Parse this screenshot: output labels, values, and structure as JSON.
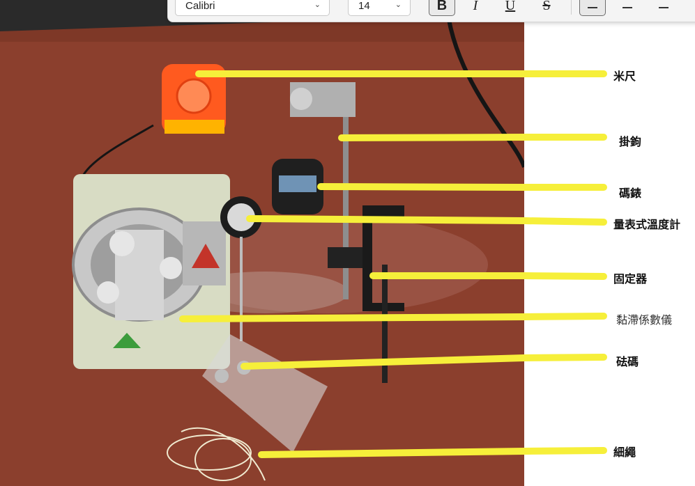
{
  "toolbar": {
    "font_name": "Calibri",
    "font_size": "14",
    "bold_icon": "B",
    "italic_icon": "I",
    "underline_icon": "U",
    "strike_icon": "S"
  },
  "labels": [
    {
      "text": "米尺"
    },
    {
      "text": "掛鉤"
    },
    {
      "text": "碼錶"
    },
    {
      "text": "量表式溫度計"
    },
    {
      "text": "固定器"
    },
    {
      "text": "黏滯係數儀"
    },
    {
      "text": "砝碼"
    },
    {
      "text": "細繩"
    }
  ],
  "colors": {
    "leader_line": "#f6ef3a",
    "table_surface": "#8a3e2c",
    "tape_measure": "#ff5a1f"
  }
}
